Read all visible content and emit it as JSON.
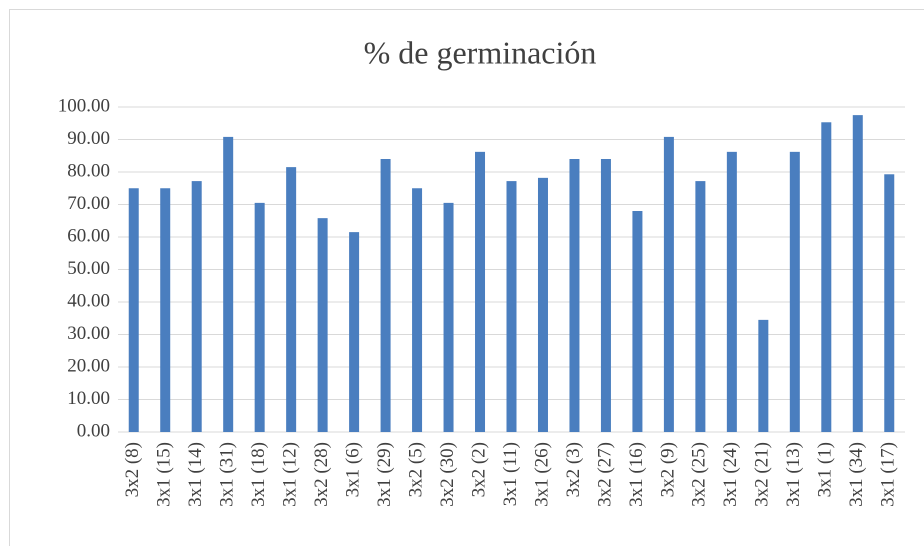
{
  "chart_data": {
    "type": "bar",
    "title": "% de germinación",
    "categories": [
      "3x2 (8)",
      "3x1 (15)",
      "3x1 (14)",
      "3x1 (31)",
      "3x1 (18)",
      "3x1 (12)",
      "3x2 (28)",
      "3x1 (6)",
      "3x1 (29)",
      "3x2 (5)",
      "3x2 (30)",
      "3x2 (2)",
      "3x1 (11)",
      "3x1 (26)",
      "3x2 (3)",
      "3x2 (27)",
      "3x1 (16)",
      "3x2 (9)",
      "3x2 (25)",
      "3x1 (24)",
      "3x2 (21)",
      "3x1 (13)",
      "3x1 (1)",
      "3x1 (34)",
      "3x1 (17)"
    ],
    "values": [
      75,
      75,
      77.2,
      90.8,
      70.5,
      81.5,
      65.8,
      61.5,
      84,
      75,
      70.5,
      86.2,
      77.2,
      78.2,
      84,
      84,
      68,
      90.8,
      77.2,
      86.2,
      34.5,
      86.2,
      95.3,
      97.5,
      79.3
    ],
    "color": "#4a7ebf",
    "ylim": [
      0,
      100
    ],
    "yticks": [
      {
        "value": 0,
        "label": "0.00"
      },
      {
        "value": 10,
        "label": "10.00"
      },
      {
        "value": 20,
        "label": "20.00"
      },
      {
        "value": 30,
        "label": "30.00"
      },
      {
        "value": 40,
        "label": "40.00"
      },
      {
        "value": 50,
        "label": "50.00"
      },
      {
        "value": 60,
        "label": "60.00"
      },
      {
        "value": 70,
        "label": "70.00"
      },
      {
        "value": 80,
        "label": "80.00"
      },
      {
        "value": 90,
        "label": "90.00"
      },
      {
        "value": 100,
        "label": "100.00"
      }
    ],
    "grid": true
  }
}
